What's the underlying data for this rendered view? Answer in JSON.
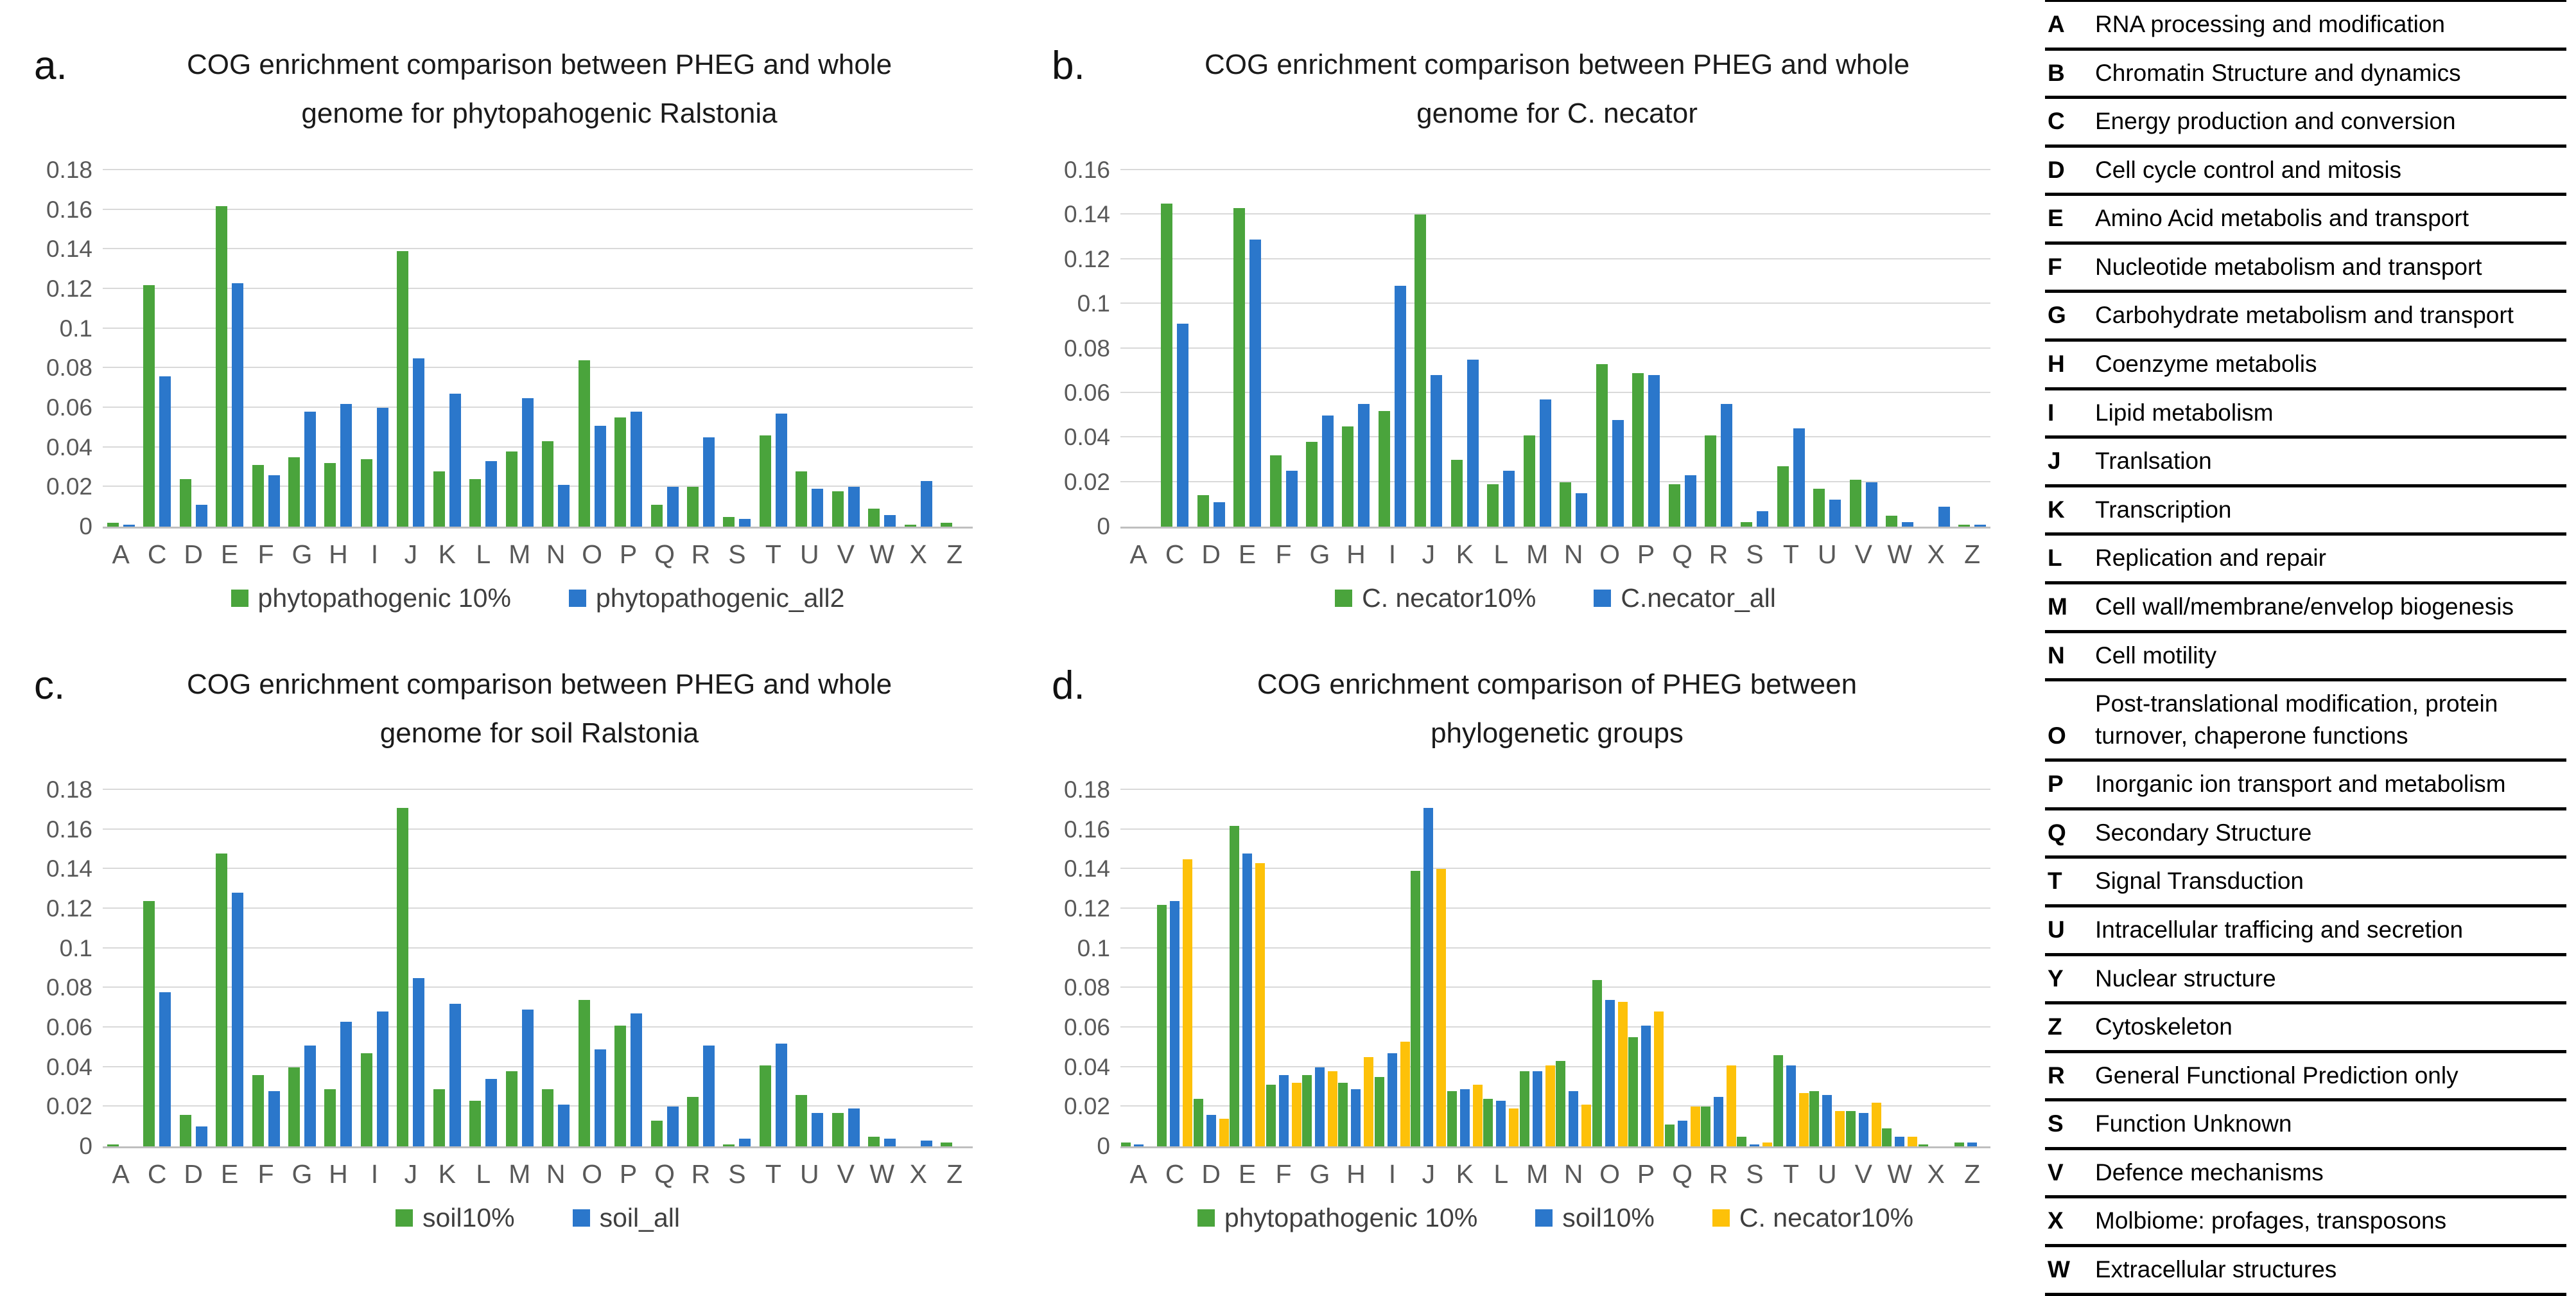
{
  "colors": {
    "green": "#4aa43c",
    "blue": "#2b77cb",
    "yellow": "#fdc109",
    "grid": "#d9d9d9",
    "axis": "#bfbfbf",
    "tick_text": "#595959"
  },
  "chart_data": [
    {
      "id": "a",
      "panel_label": "a.",
      "type": "bar",
      "title_lines": [
        "COG enrichment comparison between PHEG and whole",
        "genome for phytopahogenic Ralstonia"
      ],
      "ylim": [
        0,
        0.18
      ],
      "ytick_step": 0.02,
      "grid": true,
      "legend_position": "bottom",
      "categories": [
        "A",
        "C",
        "D",
        "E",
        "F",
        "G",
        "H",
        "I",
        "J",
        "K",
        "L",
        "M",
        "N",
        "O",
        "P",
        "Q",
        "R",
        "S",
        "T",
        "U",
        "V",
        "W",
        "X",
        "Z"
      ],
      "series": [
        {
          "name": "phytopathogenic 10%",
          "color_key": "green",
          "values": [
            0.002,
            0.122,
            0.024,
            0.162,
            0.031,
            0.035,
            0.032,
            0.034,
            0.139,
            0.028,
            0.024,
            0.038,
            0.043,
            0.084,
            0.055,
            0.011,
            0.02,
            0.005,
            0.046,
            0.028,
            0.018,
            0.009,
            0.001,
            0.002
          ]
        },
        {
          "name": "phytopathogenic_all2",
          "color_key": "blue",
          "values": [
            0.001,
            0.076,
            0.011,
            0.123,
            0.026,
            0.058,
            0.062,
            0.06,
            0.085,
            0.067,
            0.033,
            0.065,
            0.021,
            0.051,
            0.058,
            0.02,
            0.045,
            0.004,
            0.057,
            0.019,
            0.02,
            0.006,
            0.023,
            0
          ]
        }
      ]
    },
    {
      "id": "b",
      "panel_label": "b.",
      "type": "bar",
      "title_lines": [
        "COG enrichment comparison between PHEG and whole",
        "genome for C. necator"
      ],
      "ylim": [
        0,
        0.16
      ],
      "ytick_step": 0.02,
      "grid": true,
      "legend_position": "bottom",
      "categories": [
        "A",
        "C",
        "D",
        "E",
        "F",
        "G",
        "H",
        "I",
        "J",
        "K",
        "L",
        "M",
        "N",
        "O",
        "P",
        "Q",
        "R",
        "S",
        "T",
        "U",
        "V",
        "W",
        "X",
        "Z"
      ],
      "series": [
        {
          "name": "C. necator10%",
          "color_key": "green",
          "values": [
            0,
            0.145,
            0.014,
            0.143,
            0.032,
            0.038,
            0.045,
            0.052,
            0.14,
            0.03,
            0.019,
            0.041,
            0.02,
            0.073,
            0.069,
            0.019,
            0.041,
            0.002,
            0.027,
            0.017,
            0.021,
            0.005,
            0,
            0.001
          ]
        },
        {
          "name": "C.necator_all",
          "color_key": "blue",
          "values": [
            0,
            0.091,
            0.011,
            0.129,
            0.025,
            0.05,
            0.055,
            0.108,
            0.068,
            0.075,
            0.025,
            0.057,
            0.015,
            0.048,
            0.068,
            0.023,
            0.055,
            0.007,
            0.044,
            0.012,
            0.02,
            0.002,
            0.009,
            0.001
          ]
        }
      ]
    },
    {
      "id": "c",
      "panel_label": "c.",
      "type": "bar",
      "title_lines": [
        "COG enrichment comparison between PHEG and whole",
        "genome for soil Ralstonia"
      ],
      "ylim": [
        0,
        0.18
      ],
      "ytick_step": 0.02,
      "grid": true,
      "legend_position": "bottom",
      "categories": [
        "A",
        "C",
        "D",
        "E",
        "F",
        "G",
        "H",
        "I",
        "J",
        "K",
        "L",
        "M",
        "N",
        "O",
        "P",
        "Q",
        "R",
        "S",
        "T",
        "U",
        "V",
        "W",
        "X",
        "Z"
      ],
      "series": [
        {
          "name": "soil10%",
          "color_key": "green",
          "values": [
            0.001,
            0.124,
            0.016,
            0.148,
            0.036,
            0.04,
            0.029,
            0.047,
            0.171,
            0.029,
            0.023,
            0.038,
            0.029,
            0.074,
            0.061,
            0.013,
            0.025,
            0.001,
            0.041,
            0.026,
            0.017,
            0.005,
            0,
            0.002
          ]
        },
        {
          "name": "soil_all",
          "color_key": "blue",
          "values": [
            0,
            0.078,
            0.01,
            0.128,
            0.028,
            0.051,
            0.063,
            0.068,
            0.085,
            0.072,
            0.034,
            0.069,
            0.021,
            0.049,
            0.067,
            0.02,
            0.051,
            0.004,
            0.052,
            0.017,
            0.019,
            0.004,
            0.003,
            0
          ]
        }
      ]
    },
    {
      "id": "d",
      "panel_label": "d.",
      "type": "bar",
      "title_lines": [
        "COG enrichment comparison of PHEG between",
        "phylogenetic groups"
      ],
      "ylim": [
        0,
        0.18
      ],
      "ytick_step": 0.02,
      "grid": true,
      "legend_position": "bottom",
      "categories": [
        "A",
        "C",
        "D",
        "E",
        "F",
        "G",
        "H",
        "I",
        "J",
        "K",
        "L",
        "M",
        "N",
        "O",
        "P",
        "Q",
        "R",
        "S",
        "T",
        "U",
        "V",
        "W",
        "X",
        "Z"
      ],
      "series": [
        {
          "name": "phytopathogenic 10%",
          "color_key": "green",
          "values": [
            0.002,
            0.122,
            0.024,
            0.162,
            0.031,
            0.036,
            0.032,
            0.035,
            0.139,
            0.028,
            0.024,
            0.038,
            0.043,
            0.084,
            0.055,
            0.011,
            0.02,
            0.005,
            0.046,
            0.028,
            0.018,
            0.009,
            0.001,
            0.002
          ]
        },
        {
          "name": "soil10%",
          "color_key": "blue",
          "values": [
            0.001,
            0.124,
            0.016,
            0.148,
            0.036,
            0.04,
            0.029,
            0.047,
            0.171,
            0.029,
            0.023,
            0.038,
            0.028,
            0.074,
            0.061,
            0.013,
            0.025,
            0.001,
            0.041,
            0.026,
            0.017,
            0.005,
            0,
            0.002
          ]
        },
        {
          "name": "C. necator10%",
          "color_key": "yellow",
          "values": [
            0,
            0.145,
            0.014,
            0.143,
            0.032,
            0.038,
            0.045,
            0.053,
            0.14,
            0.031,
            0.019,
            0.041,
            0.021,
            0.073,
            0.068,
            0.02,
            0.041,
            0.002,
            0.027,
            0.018,
            0.022,
            0.005,
            0,
            0
          ]
        }
      ]
    }
  ],
  "cog_table": {
    "rows": [
      {
        "code": "A",
        "description": "RNA processing and modification"
      },
      {
        "code": "B",
        "description": "Chromatin Structure and dynamics"
      },
      {
        "code": "C",
        "description": "Energy production and conversion"
      },
      {
        "code": "D",
        "description": "Cell cycle control and mitosis"
      },
      {
        "code": "E",
        "description": "Amino Acid metabolis and transport"
      },
      {
        "code": "F",
        "description": "Nucleotide metabolism and transport"
      },
      {
        "code": "G",
        "description": "Carbohydrate metabolism and transport"
      },
      {
        "code": "H",
        "description": "Coenzyme metabolis"
      },
      {
        "code": "I",
        "description": "Lipid metabolism"
      },
      {
        "code": "J",
        "description": "Tranlsation"
      },
      {
        "code": "K",
        "description": "Transcription"
      },
      {
        "code": "L",
        "description": "Replication and repair"
      },
      {
        "code": "M",
        "description": "Cell wall/membrane/envelop biogenesis"
      },
      {
        "code": "N",
        "description": "Cell motility"
      },
      {
        "code": "O",
        "description": "Post-translational modification, protein turnover, chaperone functions"
      },
      {
        "code": "P",
        "description": "Inorganic ion transport and metabolism"
      },
      {
        "code": "Q",
        "description": "Secondary Structure"
      },
      {
        "code": "T",
        "description": "Signal Transduction"
      },
      {
        "code": "U",
        "description": "Intracellular trafficing and secretion"
      },
      {
        "code": "Y",
        "description": "Nuclear structure"
      },
      {
        "code": "Z",
        "description": "Cytoskeleton"
      },
      {
        "code": "R",
        "description": "General Functional Prediction only"
      },
      {
        "code": "S",
        "description": "Function Unknown"
      },
      {
        "code": "V",
        "description": "Defence mechanisms"
      },
      {
        "code": "X",
        "description": "Molbiome: profages, transposons"
      },
      {
        "code": "W",
        "description": "Extracellular structures"
      }
    ]
  }
}
